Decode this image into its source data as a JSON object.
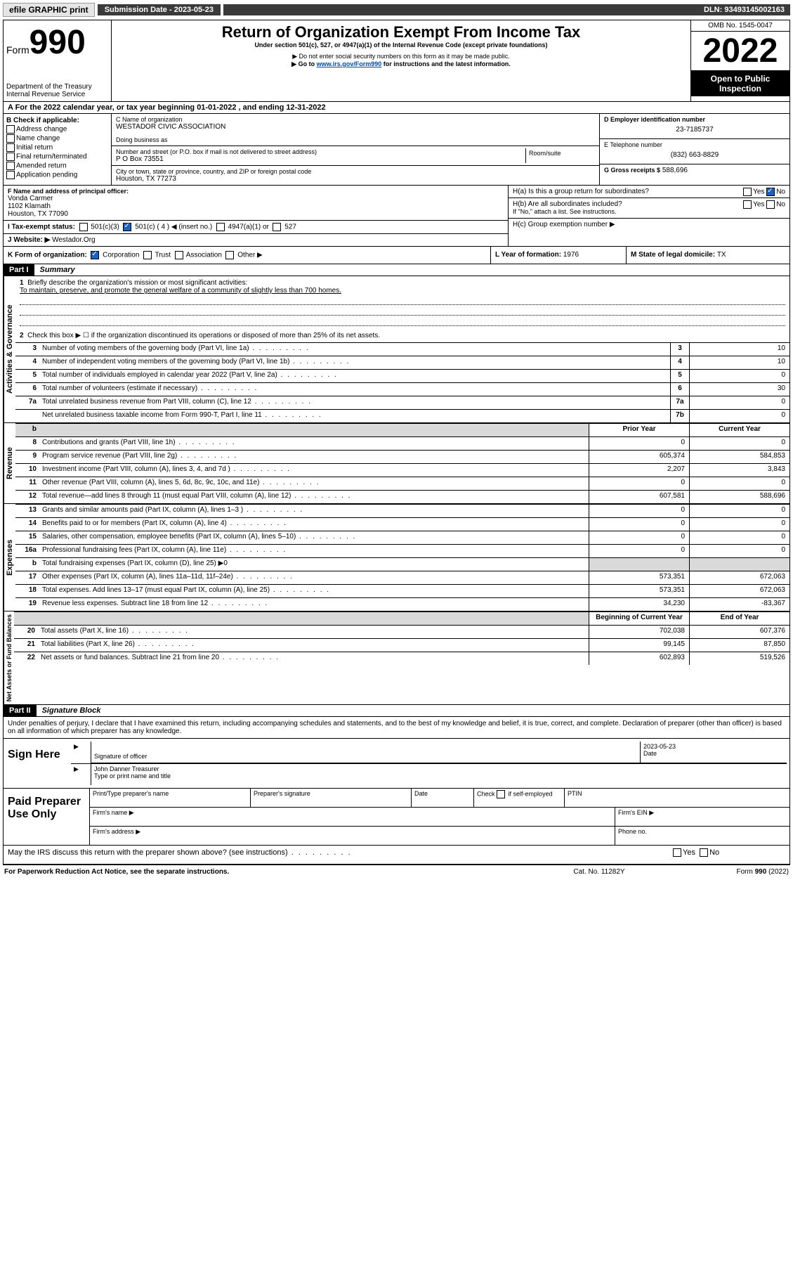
{
  "topbar": {
    "efile": "efile GRAPHIC print",
    "sub_label": "Submission Date - 2023-05-23",
    "dln": "DLN: 93493145002163"
  },
  "header": {
    "form_small": "Form",
    "form_num": "990",
    "dept": "Department of the Treasury",
    "irs": "Internal Revenue Service",
    "title": "Return of Organization Exempt From Income Tax",
    "sub1": "Under section 501(c), 527, or 4947(a)(1) of the Internal Revenue Code (except private foundations)",
    "sub2": "▶ Do not enter social security numbers on this form as it may be made public.",
    "sub3_pre": "▶ Go to ",
    "sub3_link": "www.irs.gov/Form990",
    "sub3_post": " for instructions and the latest information.",
    "omb": "OMB No. 1545-0047",
    "year": "2022",
    "open": "Open to Public Inspection"
  },
  "rowA": "A For the 2022 calendar year, or tax year beginning 01-01-2022   , and ending 12-31-2022",
  "boxB": {
    "label": "B Check if applicable:",
    "opts": [
      "Address change",
      "Name change",
      "Initial return",
      "Final return/terminated",
      "Amended return",
      "Application pending"
    ]
  },
  "boxC": {
    "label": "C Name of organization",
    "name": "WESTADOR CIVIC ASSOCIATION",
    "dba_label": "Doing business as",
    "street_label": "Number and street (or P.O. box if mail is not delivered to street address)",
    "room_label": "Room/suite",
    "street": "P O Box 73551",
    "city_label": "City or town, state or province, country, and ZIP or foreign postal code",
    "city": "Houston, TX  77273"
  },
  "boxD": {
    "label": "D Employer identification number",
    "val": "23-7185737"
  },
  "boxE": {
    "label": "E Telephone number",
    "val": "(832) 663-8829"
  },
  "boxG": {
    "label": "G Gross receipts $",
    "val": "588,696"
  },
  "boxF": {
    "label": "F Name and address of principal officer:",
    "name": "Vonda Carmer",
    "addr1": "1102 Klamath",
    "addr2": "Houston, TX  77090"
  },
  "boxH": {
    "a": "H(a)  Is this a group return for subordinates?",
    "b": "H(b)  Are all subordinates included?",
    "b_note": "If \"No,\" attach a list. See instructions.",
    "c": "H(c)  Group exemption number ▶"
  },
  "boxI": {
    "label": "I   Tax-exempt status:",
    "o1": "501(c)(3)",
    "o2": "501(c) ( 4 ) ◀ (insert no.)",
    "o3": "4947(a)(1) or",
    "o4": "527"
  },
  "boxJ": {
    "label": "J   Website: ▶",
    "val": " Westador.Org"
  },
  "boxK": {
    "label": "K Form of organization:",
    "o1": "Corporation",
    "o2": "Trust",
    "o3": "Association",
    "o4": "Other ▶"
  },
  "boxL": {
    "label": "L Year of formation: ",
    "val": "1976"
  },
  "boxM": {
    "label": "M State of legal domicile: ",
    "val": "TX"
  },
  "part1": {
    "hdr": "Part I",
    "title": "Summary",
    "q1": "Briefly describe the organization's mission or most significant activities:",
    "mission": "To maintain, preserve, and promote the general welfare of a community of slightly less than 700 homes.",
    "q2": "Check this box ▶ ☐  if the organization discontinued its operations or disposed of more than 25% of its net assets.",
    "rows_ag": [
      {
        "n": "3",
        "d": "Number of voting members of the governing body (Part VI, line 1a)",
        "b": "3",
        "v": "10"
      },
      {
        "n": "4",
        "d": "Number of independent voting members of the governing body (Part VI, line 1b)",
        "b": "4",
        "v": "10"
      },
      {
        "n": "5",
        "d": "Total number of individuals employed in calendar year 2022 (Part V, line 2a)",
        "b": "5",
        "v": "0"
      },
      {
        "n": "6",
        "d": "Total number of volunteers (estimate if necessary)",
        "b": "6",
        "v": "30"
      },
      {
        "n": "7a",
        "d": "Total unrelated business revenue from Part VIII, column (C), line 12",
        "b": "7a",
        "v": "0"
      },
      {
        "n": "",
        "d": "Net unrelated business taxable income from Form 990-T, Part I, line 11",
        "b": "7b",
        "v": "0"
      }
    ],
    "col_prior": "Prior Year",
    "col_curr": "Current Year",
    "rows_rev": [
      {
        "n": "8",
        "d": "Contributions and grants (Part VIII, line 1h)",
        "p": "0",
        "c": "0"
      },
      {
        "n": "9",
        "d": "Program service revenue (Part VIII, line 2g)",
        "p": "605,374",
        "c": "584,853"
      },
      {
        "n": "10",
        "d": "Investment income (Part VIII, column (A), lines 3, 4, and 7d )",
        "p": "2,207",
        "c": "3,843"
      },
      {
        "n": "11",
        "d": "Other revenue (Part VIII, column (A), lines 5, 6d, 8c, 9c, 10c, and 11e)",
        "p": "0",
        "c": "0"
      },
      {
        "n": "12",
        "d": "Total revenue—add lines 8 through 11 (must equal Part VIII, column (A), line 12)",
        "p": "607,581",
        "c": "588,696"
      }
    ],
    "rows_exp": [
      {
        "n": "13",
        "d": "Grants and similar amounts paid (Part IX, column (A), lines 1–3 )",
        "p": "0",
        "c": "0"
      },
      {
        "n": "14",
        "d": "Benefits paid to or for members (Part IX, column (A), line 4)",
        "p": "0",
        "c": "0"
      },
      {
        "n": "15",
        "d": "Salaries, other compensation, employee benefits (Part IX, column (A), lines 5–10)",
        "p": "0",
        "c": "0"
      },
      {
        "n": "16a",
        "d": "Professional fundraising fees (Part IX, column (A), line 11e)",
        "p": "0",
        "c": "0"
      }
    ],
    "row16b": {
      "n": "b",
      "d": "Total fundraising expenses (Part IX, column (D), line 25) ▶0"
    },
    "rows_exp2": [
      {
        "n": "17",
        "d": "Other expenses (Part IX, column (A), lines 11a–11d, 11f–24e)",
        "p": "573,351",
        "c": "672,063"
      },
      {
        "n": "18",
        "d": "Total expenses. Add lines 13–17 (must equal Part IX, column (A), line 25)",
        "p": "573,351",
        "c": "672,063"
      },
      {
        "n": "19",
        "d": "Revenue less expenses. Subtract line 18 from line 12",
        "p": "34,230",
        "c": "-83,367"
      }
    ],
    "col_beg": "Beginning of Current Year",
    "col_end": "End of Year",
    "rows_na": [
      {
        "n": "20",
        "d": "Total assets (Part X, line 16)",
        "p": "702,038",
        "c": "607,376"
      },
      {
        "n": "21",
        "d": "Total liabilities (Part X, line 26)",
        "p": "99,145",
        "c": "87,850"
      },
      {
        "n": "22",
        "d": "Net assets or fund balances. Subtract line 21 from line 20",
        "p": "602,893",
        "c": "519,526"
      }
    ],
    "tab_ag": "Activities & Governance",
    "tab_rev": "Revenue",
    "tab_exp": "Expenses",
    "tab_na": "Net Assets or Fund Balances"
  },
  "part2": {
    "hdr": "Part II",
    "title": "Signature Block",
    "decl": "Under penalties of perjury, I declare that I have examined this return, including accompanying schedules and statements, and to the best of my knowledge and belief, it is true, correct, and complete. Declaration of preparer (other than officer) is based on all information of which preparer has any knowledge."
  },
  "sign": {
    "label": "Sign Here",
    "sig_officer": "Signature of officer",
    "date": "Date",
    "date_val": "2023-05-23",
    "name": "John Danner  Treasurer",
    "name_label": "Type or print name and title"
  },
  "paid": {
    "label": "Paid Preparer Use Only",
    "c1": "Print/Type preparer's name",
    "c2": "Preparer's signature",
    "c3": "Date",
    "c4_pre": "Check",
    "c4_post": "if self-employed",
    "c5": "PTIN",
    "r2a": "Firm's name  ▶",
    "r2b": "Firm's EIN ▶",
    "r3a": "Firm's address ▶",
    "r3b": "Phone no."
  },
  "may": {
    "q": "May the IRS discuss this return with the preparer shown above? (see instructions)",
    "yes": "Yes",
    "no": "No"
  },
  "footer": {
    "l": "For Paperwork Reduction Act Notice, see the separate instructions.",
    "c": "Cat. No. 11282Y",
    "r": "Form 990 (2022)"
  }
}
